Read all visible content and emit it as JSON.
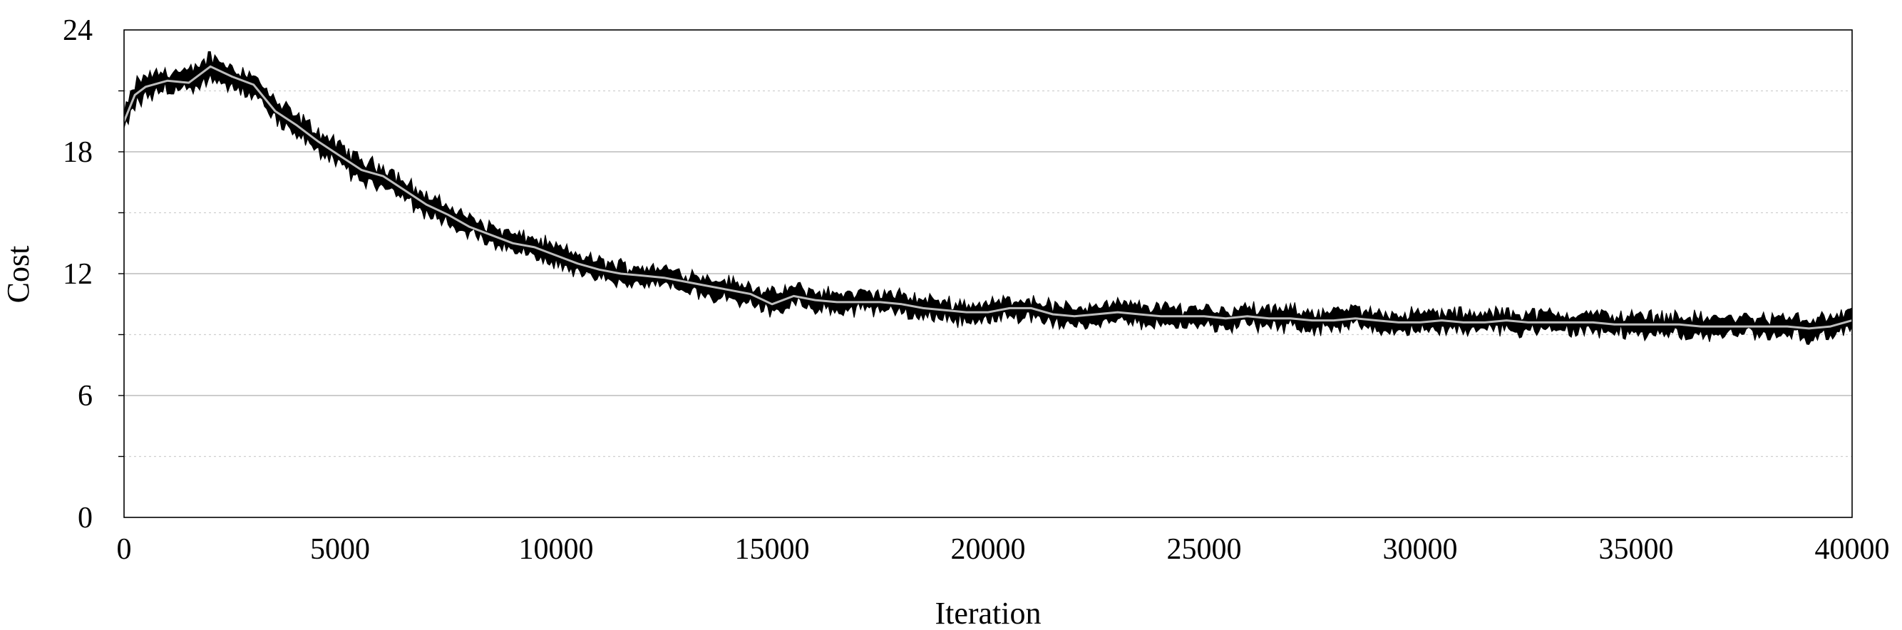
{
  "chart_data": {
    "type": "line",
    "title": "",
    "xlabel": "Iteration",
    "ylabel": "Cost",
    "xlim": [
      0,
      40000
    ],
    "ylim": [
      0,
      24
    ],
    "x_ticks": [
      "0",
      "5000",
      "10000",
      "15000",
      "20000",
      "25000",
      "30000",
      "35000",
      "40000"
    ],
    "y_ticks": [
      "0",
      "6",
      "12",
      "18",
      "24"
    ],
    "grid": "horizontal",
    "legend": "none",
    "band_color": "#000000",
    "line_color": "#bdbdbd",
    "series": [
      {
        "x": [
          0,
          250,
          500,
          1000,
          1500,
          2000,
          2500,
          3000,
          3500,
          4000,
          4500,
          5000,
          5500,
          6000,
          6500,
          7000,
          7500,
          8000,
          8500,
          9000,
          9500,
          10000,
          10500,
          11000,
          11500,
          12000,
          12500,
          13000,
          13500,
          14000,
          14500,
          15000,
          15500,
          16000,
          16500,
          17000,
          17500,
          18000,
          18500,
          19000,
          19500,
          20000,
          20500,
          21000,
          21500,
          22000,
          22500,
          23000,
          23500,
          24000,
          24500,
          25000,
          25500,
          26000,
          26500,
          27000,
          27500,
          28000,
          28500,
          29000,
          29500,
          30000,
          30500,
          31000,
          31500,
          32000,
          32500,
          33000,
          33500,
          34000,
          34500,
          35000,
          35500,
          36000,
          36500,
          37000,
          37500,
          38000,
          38500,
          39000,
          39500,
          40000
        ],
        "values": [
          19.5,
          20.8,
          21.2,
          21.5,
          21.4,
          22.2,
          21.7,
          21.3,
          20.0,
          19.3,
          18.5,
          17.8,
          17.1,
          16.8,
          16.1,
          15.4,
          14.9,
          14.3,
          13.9,
          13.5,
          13.3,
          12.9,
          12.5,
          12.2,
          12.0,
          11.9,
          11.8,
          11.6,
          11.4,
          11.2,
          11.0,
          10.5,
          10.9,
          10.7,
          10.6,
          10.6,
          10.6,
          10.5,
          10.3,
          10.2,
          10.1,
          10.1,
          10.3,
          10.3,
          10.0,
          9.9,
          10.0,
          10.1,
          10.0,
          9.9,
          9.9,
          9.9,
          9.8,
          9.9,
          9.8,
          9.8,
          9.7,
          9.7,
          9.8,
          9.7,
          9.6,
          9.6,
          9.7,
          9.6,
          9.6,
          9.7,
          9.6,
          9.6,
          9.6,
          9.6,
          9.5,
          9.5,
          9.5,
          9.5,
          9.4,
          9.4,
          9.4,
          9.4,
          9.4,
          9.3,
          9.4,
          9.7
        ],
        "spread": [
          0.35,
          0.5,
          0.5,
          0.45,
          0.45,
          0.5,
          0.45,
          0.45,
          0.45,
          0.45,
          0.45,
          0.45,
          0.45,
          0.45,
          0.45,
          0.4,
          0.4,
          0.4,
          0.4,
          0.4,
          0.4,
          0.4,
          0.4,
          0.4,
          0.4,
          0.4,
          0.4,
          0.4,
          0.4,
          0.4,
          0.4,
          0.45,
          0.4,
          0.4,
          0.4,
          0.4,
          0.4,
          0.4,
          0.4,
          0.4,
          0.4,
          0.4,
          0.4,
          0.4,
          0.4,
          0.4,
          0.4,
          0.4,
          0.4,
          0.4,
          0.4,
          0.4,
          0.4,
          0.4,
          0.4,
          0.4,
          0.4,
          0.4,
          0.4,
          0.4,
          0.4,
          0.4,
          0.4,
          0.4,
          0.4,
          0.4,
          0.4,
          0.4,
          0.4,
          0.4,
          0.4,
          0.4,
          0.4,
          0.4,
          0.4,
          0.4,
          0.4,
          0.4,
          0.4,
          0.4,
          0.4,
          0.45
        ]
      }
    ]
  }
}
